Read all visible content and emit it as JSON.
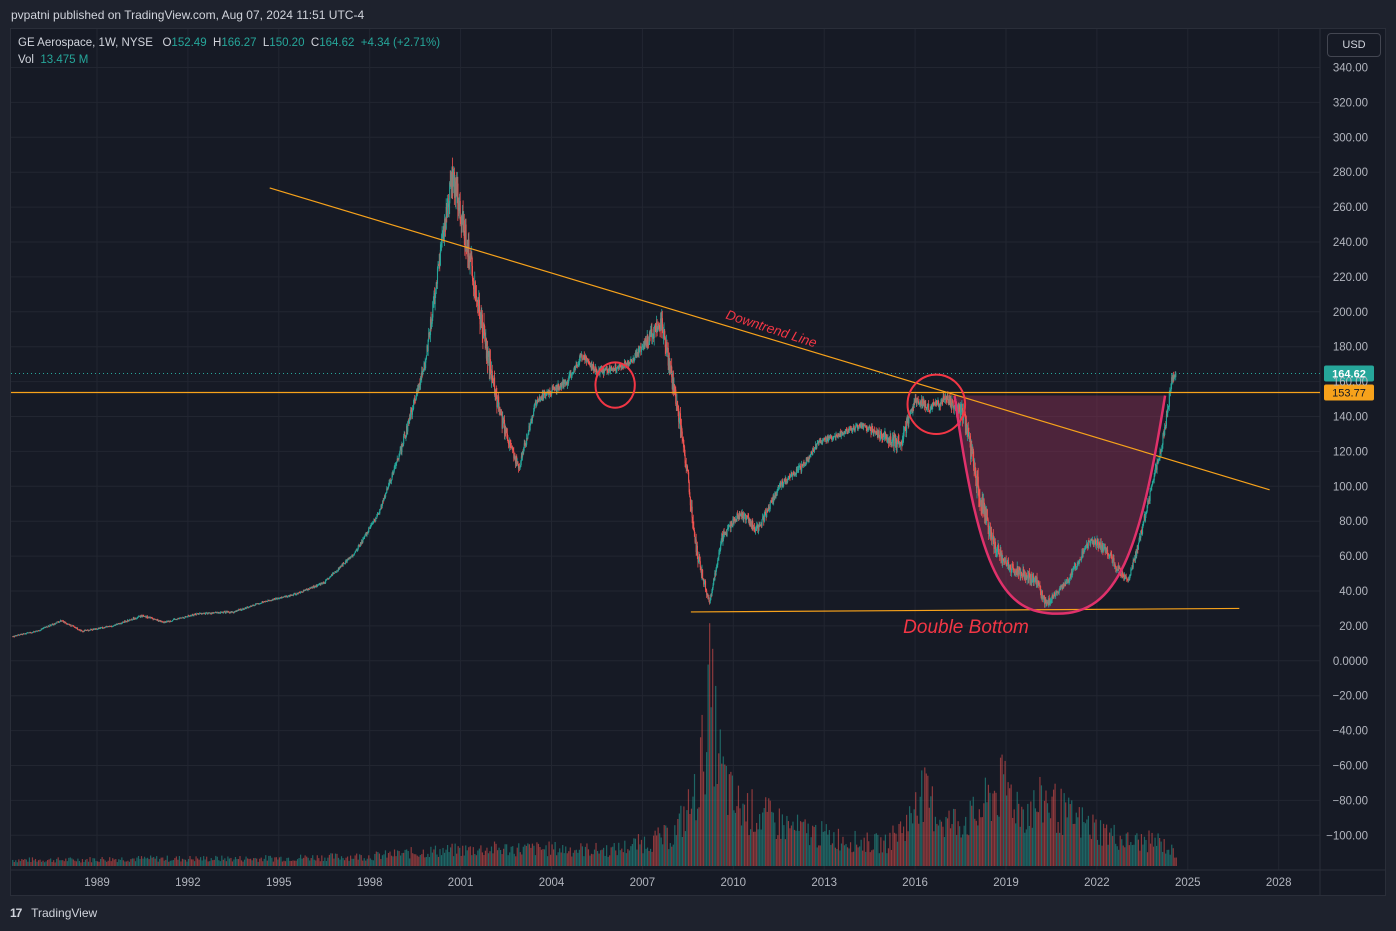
{
  "header": {
    "publisher": "pvpatni published on TradingView.com, Aug 07, 2024 11:51 UTC-4"
  },
  "legend": {
    "symbol": "GE Aerospace, 1W, NYSE",
    "o_label": "O",
    "open": "152.49",
    "h_label": "H",
    "high": "166.27",
    "l_label": "L",
    "low": "150.20",
    "c_label": "C",
    "close": "164.62",
    "change": "+4.34 (+2.71%)",
    "vol_label": "Vol",
    "vol_value": "13.475 M"
  },
  "currency_button": "USD",
  "footer": {
    "brand": "TradingView"
  },
  "colors": {
    "background": "#161a25",
    "grid": "#222631",
    "up": "#26a69a",
    "down": "#ef5350",
    "trendline": "#f7a21b",
    "annotation": "#f23645",
    "cup_fill": "#7b2d4f"
  },
  "chart_data": {
    "type": "candlestick",
    "symbol": "GE Aerospace",
    "interval": "1W",
    "exchange": "NYSE",
    "x_tick_labels": [
      "1989",
      "1992",
      "1995",
      "1998",
      "2001",
      "2004",
      "2007",
      "2010",
      "2013",
      "2016",
      "2019",
      "2022",
      "2025",
      "2028"
    ],
    "y_tick_labels": [
      "340.00",
      "320.00",
      "300.00",
      "280.00",
      "260.00",
      "240.00",
      "220.00",
      "200.00",
      "180.00",
      "160.00",
      "140.00",
      "120.00",
      "100.00",
      "80.00",
      "60.00",
      "40.00",
      "20.00",
      "0.0000",
      "−20.00",
      "−40.00",
      "−60.00",
      "−80.00",
      "−100.00"
    ],
    "ylim": [
      -115,
      350
    ],
    "xlim": [
      1986.2,
      2029.7
    ],
    "price_series": {
      "name": "GE Aerospace",
      "x": [
        1986.2,
        1987,
        1987.8,
        1988.5,
        1989.5,
        1990.5,
        1991.2,
        1992.3,
        1993.5,
        1994.5,
        1995.5,
        1996.5,
        1997.5,
        1998.3,
        1999,
        1999.8,
        2000.3,
        2000.7,
        2001.2,
        2001.7,
        2002.3,
        2002.9,
        2003.5,
        2004,
        2004.5,
        2005,
        2005.5,
        2006,
        2006.5,
        2007,
        2007.6,
        2008.3,
        2008.8,
        2009.2,
        2009.6,
        2010.2,
        2010.8,
        2011.5,
        2012.2,
        2012.8,
        2013.5,
        2014.2,
        2014.8,
        2015.5,
        2016,
        2016.5,
        2017,
        2017.6,
        2018,
        2018.5,
        2019,
        2019.5,
        2020,
        2020.3,
        2020.7,
        2021,
        2021.3,
        2021.8,
        2022.2,
        2022.6,
        2023,
        2023.4,
        2023.8,
        2024.2,
        2024.45,
        2024.6
      ],
      "close": [
        14,
        17,
        23,
        17,
        20,
        26,
        22,
        27,
        28,
        34,
        38,
        45,
        62,
        85,
        120,
        170,
        230,
        280,
        240,
        190,
        140,
        110,
        150,
        155,
        160,
        175,
        165,
        168,
        170,
        180,
        195,
        130,
        60,
        33,
        70,
        85,
        75,
        100,
        110,
        125,
        130,
        135,
        130,
        125,
        150,
        145,
        150,
        140,
        105,
        70,
        55,
        50,
        45,
        32,
        40,
        45,
        55,
        70,
        65,
        55,
        45,
        70,
        100,
        130,
        160,
        164.62
      ],
      "high": [
        16,
        19,
        25,
        19,
        22,
        28,
        24,
        29,
        30,
        36,
        40,
        48,
        66,
        90,
        130,
        185,
        260,
        290,
        255,
        205,
        150,
        125,
        160,
        165,
        170,
        180,
        175,
        175,
        175,
        190,
        200,
        140,
        75,
        40,
        80,
        90,
        90,
        108,
        120,
        130,
        135,
        140,
        140,
        135,
        160,
        158,
        155,
        150,
        125,
        80,
        62,
        60,
        55,
        45,
        48,
        55,
        62,
        75,
        72,
        62,
        52,
        80,
        110,
        145,
        176,
        166.27
      ],
      "low": [
        13,
        15,
        20,
        15,
        18,
        22,
        20,
        24,
        25,
        32,
        35,
        42,
        58,
        78,
        110,
        155,
        210,
        220,
        190,
        140,
        110,
        100,
        140,
        145,
        150,
        160,
        155,
        155,
        160,
        165,
        150,
        95,
        40,
        28,
        55,
        70,
        68,
        90,
        100,
        115,
        120,
        125,
        115,
        95,
        140,
        135,
        130,
        105,
        70,
        40,
        35,
        32,
        28,
        25,
        32,
        38,
        45,
        55,
        48,
        40,
        38,
        55,
        90,
        120,
        145,
        150.2
      ],
      "current_close": 164.62,
      "last_close_label": "164.62",
      "horizontal_level": 153.77,
      "horizontal_level_label": "153.77"
    },
    "volume_series": {
      "name": "Vol",
      "current": "13.475 M",
      "x": [
        1986.2,
        1988,
        1990,
        1992,
        1994,
        1996,
        1998,
        2000,
        2002,
        2004,
        2006,
        2008,
        2008.7,
        2009,
        2009.2,
        2009.6,
        2010,
        2011,
        2012,
        2013,
        2014,
        2015,
        2015.9,
        2016,
        2017,
        2018,
        2018.6,
        2019,
        2019.5,
        2020,
        2020.3,
        2021,
        2022,
        2023,
        2024,
        2024.6
      ],
      "values": [
        5,
        5,
        6,
        6,
        6,
        7,
        8,
        12,
        14,
        14,
        13,
        25,
        55,
        95,
        140,
        75,
        50,
        40,
        30,
        25,
        20,
        18,
        40,
        65,
        35,
        40,
        60,
        65,
        45,
        48,
        55,
        40,
        30,
        20,
        20,
        10
      ]
    },
    "annotations": {
      "downtrend_label": "Downtrend Line",
      "double_bottom_label": "Double Bottom",
      "downtrend_line": {
        "from": [
          1994.7,
          271
        ],
        "to": [
          2027.7,
          98
        ]
      },
      "horizontal_level_line": 153.77,
      "support_line": {
        "from": [
          2008.6,
          28
        ],
        "to": [
          2026.7,
          30
        ]
      },
      "circles": [
        {
          "center": [
            2006.1,
            158
          ],
          "radius_x_years": 0.65,
          "radius_y_value": 13
        },
        {
          "center": [
            2016.7,
            147
          ],
          "radius_x_years": 0.95,
          "radius_y_value": 17
        }
      ],
      "cup": {
        "left": [
          2017.3,
          152
        ],
        "bottom": [
          2020.7,
          27
        ],
        "right": [
          2024.25,
          152
        ]
      }
    },
    "grid": true,
    "legend_position": "top-left"
  }
}
